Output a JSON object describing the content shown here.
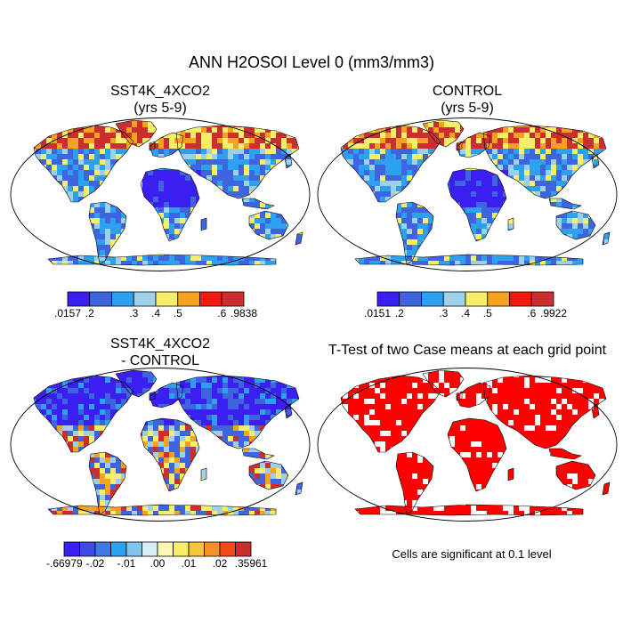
{
  "figure": {
    "title": "ANN H2OSOI Level 0 (mm3/mm3)"
  },
  "panels": [
    {
      "id": "case",
      "title_line1": "SST4K_4XCO2",
      "title_line2": "(yrs 5-9)",
      "colorbar": {
        "colors": [
          "#3a1ff0",
          "#3e64e0",
          "#2ea0f0",
          "#9ed0ea",
          "#f7ef6a",
          "#f6a21e",
          "#f01a0e",
          "#cc2e30"
        ],
        "labels": [
          ".0157",
          ".2",
          ".3",
          ".4",
          ".5",
          ".6",
          ".9838"
        ]
      }
    },
    {
      "id": "control",
      "title_line1": "CONTROL",
      "title_line2": "(yrs 5-9)",
      "colorbar": {
        "colors": [
          "#3a1ff0",
          "#3e64e0",
          "#2ea0f0",
          "#9ed0ea",
          "#f7ef6a",
          "#f6a21e",
          "#f01a0e",
          "#cc2e30"
        ],
        "labels": [
          ".0151",
          ".2",
          ".3",
          ".4",
          ".5",
          ".6",
          ".9922"
        ]
      }
    },
    {
      "id": "difference",
      "title_line1": "SST4K_4XCO2",
      "title_line2": "- CONTROL",
      "colorbar": {
        "colors": [
          "#3a1ff0",
          "#3e4ae6",
          "#3e7ae4",
          "#2ea0f0",
          "#7ec6ee",
          "#d8eef6",
          "#fbf6b0",
          "#f7ef6a",
          "#f6c43a",
          "#f6902a",
          "#f24a16",
          "#cc2e30"
        ],
        "labels": [
          "-.66979",
          "-.02",
          "-.01",
          ".00",
          ".01",
          ".02",
          ".35961"
        ]
      }
    },
    {
      "id": "ttest",
      "title_line1": "T-Test of two Case means at each grid point",
      "note": "Cells are significant at 0.1 level"
    }
  ],
  "map_palette": {
    "land_wet": "#3e64e0",
    "land_dry": "#3a1ff0",
    "high": "#cc2e30",
    "mid": "#f6a21e",
    "yellow": "#f7ef6a",
    "light": "#9ed0ea",
    "cyan": "#2ea0f0",
    "signif": "#ff0000"
  }
}
